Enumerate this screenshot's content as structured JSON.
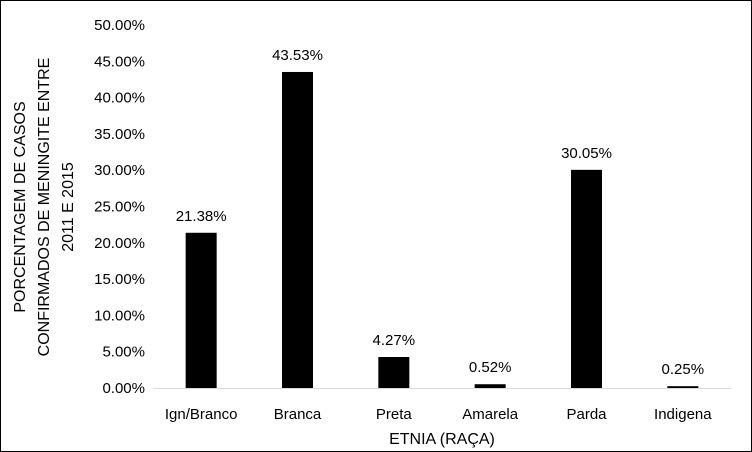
{
  "chart_data": {
    "type": "bar",
    "categories": [
      "Ign/Branco",
      "Branca",
      "Preta",
      "Amarela",
      "Parda",
      "Indigena"
    ],
    "values": [
      21.38,
      43.53,
      4.27,
      0.52,
      30.05,
      0.25
    ],
    "data_labels": [
      "21.38%",
      "43.53%",
      "4.27%",
      "0.52%",
      "30.05%",
      "0.25%"
    ],
    "xlabel": "ETNIA (RAÇA)",
    "ylabel_lines": [
      "PORCENTAGEM DE CASOS",
      "CONFIRMADOS DE MENINGITE ENTRE",
      "2011 E 2015"
    ],
    "ylim": [
      0,
      50
    ],
    "yticks": [
      0,
      5,
      10,
      15,
      20,
      25,
      30,
      35,
      40,
      45,
      50
    ],
    "ytick_labels": [
      "0.00%",
      "5.00%",
      "10.00%",
      "15.00%",
      "20.00%",
      "25.00%",
      "30.00%",
      "35.00%",
      "40.00%",
      "45.00%",
      "50.00%"
    ],
    "grid": false,
    "legend": "none",
    "bar_color": "#000000"
  }
}
